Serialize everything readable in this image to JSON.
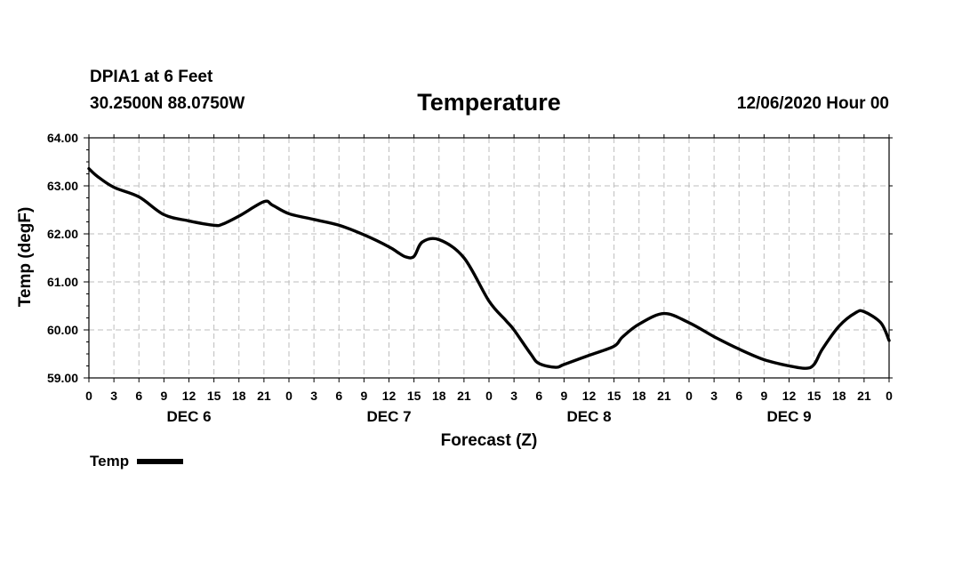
{
  "header": {
    "station": "DPIA1 at 6 Feet",
    "coords": "30.2500N 88.0750W",
    "title": "Temperature",
    "run": "12/06/2020 Hour 00"
  },
  "legend": {
    "label": "Temp",
    "color": "#000000"
  },
  "chart_data": {
    "type": "line",
    "title": "Temperature",
    "xlabel": "Forecast (Z)",
    "ylabel": "Temp (degF)",
    "ylim": [
      59,
      64
    ],
    "yticks": [
      "59.00",
      "60.00",
      "61.00",
      "62.00",
      "63.00",
      "64.00"
    ],
    "xlim": [
      0,
      96
    ],
    "xtick_labels": [
      "0",
      "3",
      "6",
      "9",
      "12",
      "15",
      "18",
      "21",
      "0",
      "3",
      "6",
      "9",
      "12",
      "15",
      "18",
      "21",
      "0",
      "3",
      "6",
      "9",
      "12",
      "15",
      "18",
      "21",
      "0",
      "3",
      "6",
      "9",
      "12",
      "15",
      "18",
      "21",
      "0"
    ],
    "day_labels": [
      {
        "label": "DEC 6",
        "hour": 12
      },
      {
        "label": "DEC 7",
        "hour": 36
      },
      {
        "label": "DEC 8",
        "hour": 60
      },
      {
        "label": "DEC 9",
        "hour": 84
      }
    ],
    "grid": true,
    "legend_position": "bottom-left",
    "series": [
      {
        "name": "Temp",
        "color": "#000000",
        "x": [
          0,
          1,
          3,
          6,
          9,
          12,
          15,
          16,
          18,
          21,
          22,
          24,
          27,
          30,
          33,
          36,
          37,
          38,
          39,
          40,
          42,
          45,
          48,
          50,
          51,
          53,
          54,
          56,
          57,
          60,
          63,
          64,
          66,
          69,
          72,
          75,
          78,
          81,
          84,
          86,
          87,
          88,
          90,
          92,
          93,
          95,
          96
        ],
        "y": [
          63.36,
          63.2,
          62.97,
          62.77,
          62.4,
          62.27,
          62.18,
          62.2,
          62.37,
          62.67,
          62.6,
          62.42,
          62.3,
          62.18,
          61.98,
          61.73,
          61.62,
          61.52,
          61.53,
          61.83,
          61.88,
          61.5,
          60.6,
          60.2,
          60.0,
          59.5,
          59.3,
          59.22,
          59.28,
          59.47,
          59.66,
          59.85,
          60.12,
          60.34,
          60.15,
          59.86,
          59.6,
          59.38,
          59.25,
          59.2,
          59.28,
          59.6,
          60.08,
          60.36,
          60.38,
          60.15,
          59.78
        ]
      }
    ]
  }
}
